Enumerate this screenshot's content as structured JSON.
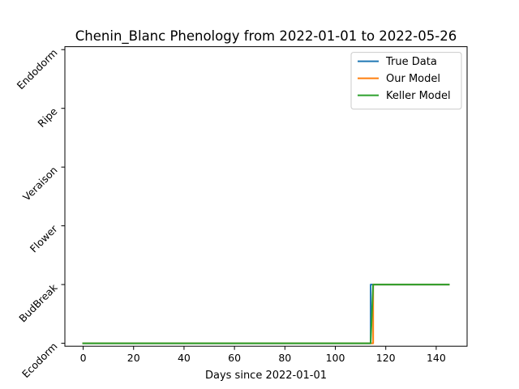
{
  "chart_data": {
    "type": "line",
    "title": "Chenin_Blanc Phenology from 2022-01-01 to 2022-05-26",
    "xlabel": "Days since 2022-01-01",
    "ylabel": "",
    "xlim": [
      -7.25,
      152.25
    ],
    "ylim": [
      -0.05,
      5.05
    ],
    "x_ticks": [
      0,
      20,
      40,
      60,
      80,
      100,
      120,
      140
    ],
    "y_ticks": [
      0,
      1,
      2,
      3,
      4,
      5
    ],
    "y_tick_labels": [
      "Ecodorm",
      "BudBreak",
      "Flower",
      "Veraison",
      "Ripe",
      "Endodorm"
    ],
    "grid": false,
    "legend_position": "top-right",
    "series": [
      {
        "name": "True Data",
        "color": "#1f77b4",
        "x": [
          0,
          114,
          114,
          145
        ],
        "y": [
          0,
          0,
          1,
          1
        ]
      },
      {
        "name": "Our Model",
        "color": "#ff7f0e",
        "x": [
          0,
          115,
          115,
          145
        ],
        "y": [
          0,
          0,
          1,
          1
        ]
      },
      {
        "name": "Keller Model",
        "color": "#2ca02c",
        "x": [
          0,
          114,
          115,
          145
        ],
        "y": [
          0,
          0,
          1,
          1
        ]
      }
    ]
  }
}
